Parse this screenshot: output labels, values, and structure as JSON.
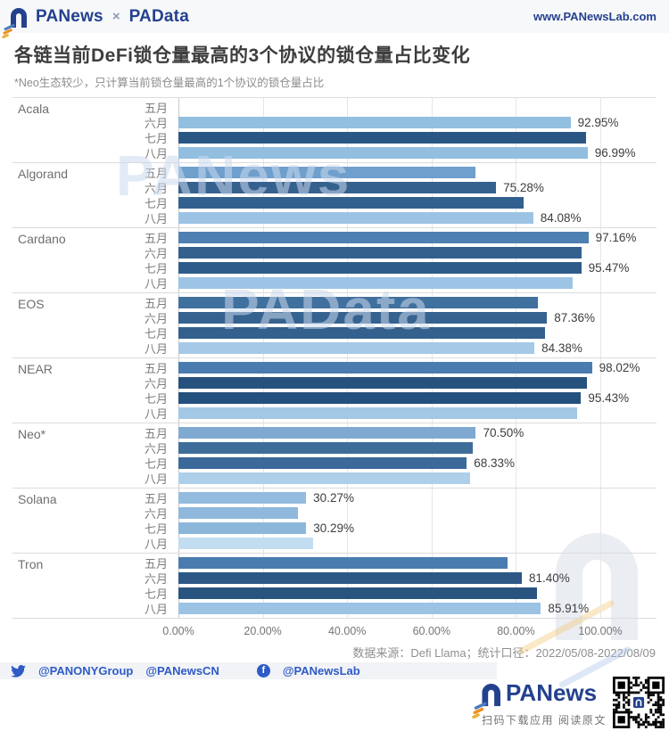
{
  "header": {
    "logo_primary": "PANews",
    "logo_separator": "×",
    "logo_secondary": "PAData",
    "url": "www.PANewsLab.com"
  },
  "title": "各链当前DeFi锁仓量最高的3个协议的锁仓量占比变化",
  "subtitle": "*Neo生态较少，只计算当前锁仓量最高的1个协议的锁仓量占比",
  "chart_data": {
    "type": "bar",
    "orientation": "horizontal",
    "unit": "%",
    "xlim": [
      0,
      100
    ],
    "grid": true,
    "x_axis_ticks": [
      "0.00%",
      "20.00%",
      "40.00%",
      "60.00%",
      "80.00%",
      "100.00%"
    ],
    "x_axis_tick_values": [
      0,
      20,
      40,
      60,
      80,
      100
    ],
    "month_labels": [
      "五月",
      "六月",
      "七月",
      "八月"
    ],
    "groups": [
      {
        "chain": "Acala",
        "bars": [
          {
            "month": "五月",
            "value": null,
            "color": null,
            "label": ""
          },
          {
            "month": "六月",
            "value": 92.95,
            "color": "#92bee0",
            "label": "92.95%"
          },
          {
            "month": "七月",
            "value": 96.6,
            "color": "#2a5783",
            "label": ""
          },
          {
            "month": "八月",
            "value": 96.99,
            "color": "#92bee0",
            "label": "96.99%"
          }
        ]
      },
      {
        "chain": "Algorand",
        "bars": [
          {
            "month": "五月",
            "value": 70.3,
            "color": "#6f9fcd",
            "label": ""
          },
          {
            "month": "六月",
            "value": 75.28,
            "color": "#35618e",
            "label": "75.28%"
          },
          {
            "month": "七月",
            "value": 81.8,
            "color": "#32608e",
            "label": ""
          },
          {
            "month": "八月",
            "value": 84.08,
            "color": "#9cc3e4",
            "label": "84.08%"
          }
        ]
      },
      {
        "chain": "Cardano",
        "bars": [
          {
            "month": "五月",
            "value": 97.16,
            "color": "#4e80b1",
            "label": "97.16%"
          },
          {
            "month": "六月",
            "value": 95.6,
            "color": "#33608d",
            "label": ""
          },
          {
            "month": "七月",
            "value": 95.47,
            "color": "#2e5c8a",
            "label": "95.47%"
          },
          {
            "month": "八月",
            "value": 93.4,
            "color": "#9ec4e5",
            "label": ""
          }
        ]
      },
      {
        "chain": "EOS",
        "bars": [
          {
            "month": "五月",
            "value": 85.2,
            "color": "#40709e",
            "label": ""
          },
          {
            "month": "六月",
            "value": 87.36,
            "color": "#36628f",
            "label": "87.36%"
          },
          {
            "month": "七月",
            "value": 86.9,
            "color": "#33608d",
            "label": ""
          },
          {
            "month": "八月",
            "value": 84.38,
            "color": "#a5c9e6",
            "label": "84.38%"
          }
        ]
      },
      {
        "chain": "NEAR",
        "bars": [
          {
            "month": "五月",
            "value": 98.02,
            "color": "#4a7cb0",
            "label": "98.02%"
          },
          {
            "month": "六月",
            "value": 96.8,
            "color": "#28527e",
            "label": ""
          },
          {
            "month": "七月",
            "value": 95.43,
            "color": "#24507d",
            "label": "95.43%"
          },
          {
            "month": "八月",
            "value": 94.6,
            "color": "#a3c8e6",
            "label": ""
          }
        ]
      },
      {
        "chain": "Neo*",
        "bars": [
          {
            "month": "五月",
            "value": 70.5,
            "color": "#7fa9d1",
            "label": "70.50%"
          },
          {
            "month": "六月",
            "value": 69.8,
            "color": "#3f6d99",
            "label": ""
          },
          {
            "month": "七月",
            "value": 68.33,
            "color": "#3a699a",
            "label": "68.33%"
          },
          {
            "month": "八月",
            "value": 69.2,
            "color": "#aecfe9",
            "label": ""
          }
        ]
      },
      {
        "chain": "Solana",
        "bars": [
          {
            "month": "五月",
            "value": 30.27,
            "color": "#93bbde",
            "label": "30.27%"
          },
          {
            "month": "六月",
            "value": 28.3,
            "color": "#8fb8dc",
            "label": ""
          },
          {
            "month": "七月",
            "value": 30.29,
            "color": "#8cb6da",
            "label": "30.29%"
          },
          {
            "month": "八月",
            "value": 32.0,
            "color": "#c3ddf0",
            "label": ""
          }
        ]
      },
      {
        "chain": "Tron",
        "bars": [
          {
            "month": "五月",
            "value": 78.0,
            "color": "#4a7cb0",
            "label": ""
          },
          {
            "month": "六月",
            "value": 81.4,
            "color": "#2d5885",
            "label": "81.40%"
          },
          {
            "month": "七月",
            "value": 84.9,
            "color": "#2a5480",
            "label": ""
          },
          {
            "month": "八月",
            "value": 85.91,
            "color": "#9cc3e4",
            "label": "85.91%"
          }
        ]
      }
    ]
  },
  "source_note": "数据来源：Defi Llama；统计口径：2022/05/08-2022/08/09",
  "social": {
    "twitter_icon": "twitter-bird",
    "twitter_handle_1": "@PANONYGroup",
    "twitter_handle_2": "@PANewsCN",
    "facebook_icon": "facebook-f",
    "facebook_handle": "@PANewsLab"
  },
  "footer": {
    "logo_text": "PANews",
    "caption": "扫码下载应用 阅读原文",
    "qr_icon": "qr-code"
  },
  "watermarks": {
    "text_1": "PANews",
    "text_2": "PAData"
  },
  "colors": {
    "brand_navy": "#24418e",
    "accent_orange": "#f0901e",
    "title_text": "#3d3d3d",
    "handle_blue": "#2e5bc6"
  }
}
